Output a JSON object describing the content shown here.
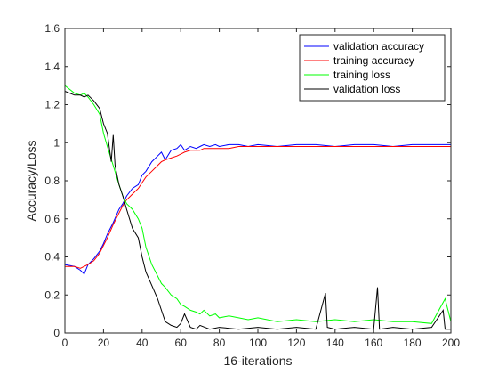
{
  "chart_data": {
    "type": "line",
    "title": "",
    "xlabel": "16-iterations",
    "ylabel": "Accuracy/Loss",
    "xlim": [
      0,
      200
    ],
    "ylim": [
      0,
      1.6
    ],
    "xticks": [
      "0",
      "20",
      "40",
      "60",
      "80",
      "100",
      "120",
      "140",
      "160",
      "180",
      "200"
    ],
    "yticks": [
      "0",
      "0.2",
      "0.4",
      "0.6",
      "0.8",
      "1",
      "1.2",
      "1.4",
      "1.6"
    ],
    "grid": false,
    "legend_position": "top-right",
    "series": [
      {
        "name": "validation accuracy",
        "color": "#0000ff",
        "x": [
          0,
          5,
          8,
          10,
          12,
          15,
          18,
          20,
          22,
          25,
          28,
          30,
          32,
          35,
          38,
          40,
          42,
          45,
          48,
          50,
          52,
          55,
          58,
          60,
          62,
          65,
          68,
          70,
          72,
          75,
          78,
          80,
          85,
          90,
          95,
          100,
          110,
          120,
          130,
          140,
          150,
          160,
          170,
          180,
          190,
          200
        ],
        "y": [
          0.36,
          0.35,
          0.33,
          0.31,
          0.36,
          0.39,
          0.43,
          0.47,
          0.52,
          0.58,
          0.65,
          0.68,
          0.72,
          0.76,
          0.78,
          0.83,
          0.85,
          0.9,
          0.93,
          0.95,
          0.91,
          0.96,
          0.97,
          0.99,
          0.96,
          0.98,
          0.97,
          0.98,
          0.99,
          0.98,
          0.99,
          0.98,
          0.99,
          0.99,
          0.98,
          0.99,
          0.98,
          0.99,
          0.99,
          0.98,
          0.99,
          0.99,
          0.98,
          0.99,
          0.99,
          0.99
        ]
      },
      {
        "name": "training accuracy",
        "color": "#ff0000",
        "x": [
          0,
          5,
          8,
          10,
          12,
          15,
          18,
          20,
          22,
          25,
          28,
          30,
          32,
          35,
          38,
          40,
          42,
          45,
          48,
          50,
          52,
          55,
          58,
          60,
          62,
          65,
          68,
          70,
          72,
          75,
          78,
          80,
          85,
          90,
          95,
          100,
          110,
          120,
          130,
          140,
          150,
          160,
          170,
          180,
          190,
          200
        ],
        "y": [
          0.35,
          0.35,
          0.34,
          0.35,
          0.36,
          0.38,
          0.42,
          0.46,
          0.5,
          0.57,
          0.63,
          0.67,
          0.7,
          0.73,
          0.76,
          0.79,
          0.82,
          0.85,
          0.88,
          0.9,
          0.91,
          0.92,
          0.93,
          0.94,
          0.95,
          0.96,
          0.96,
          0.96,
          0.97,
          0.97,
          0.97,
          0.97,
          0.97,
          0.98,
          0.98,
          0.98,
          0.98,
          0.98,
          0.98,
          0.98,
          0.98,
          0.98,
          0.98,
          0.98,
          0.98,
          0.98
        ]
      },
      {
        "name": "training loss",
        "color": "#00ff00",
        "x": [
          0,
          5,
          8,
          10,
          12,
          15,
          18,
          20,
          22,
          25,
          28,
          30,
          32,
          35,
          38,
          40,
          42,
          45,
          48,
          50,
          52,
          55,
          58,
          60,
          62,
          65,
          68,
          70,
          72,
          75,
          78,
          80,
          85,
          90,
          95,
          100,
          110,
          120,
          130,
          140,
          150,
          160,
          170,
          180,
          190,
          197,
          200
        ],
        "y": [
          1.3,
          1.26,
          1.25,
          1.26,
          1.24,
          1.2,
          1.15,
          1.05,
          0.98,
          0.88,
          0.78,
          0.72,
          0.68,
          0.65,
          0.6,
          0.55,
          0.45,
          0.36,
          0.3,
          0.26,
          0.24,
          0.2,
          0.18,
          0.15,
          0.14,
          0.12,
          0.11,
          0.1,
          0.12,
          0.09,
          0.1,
          0.08,
          0.09,
          0.08,
          0.07,
          0.08,
          0.06,
          0.07,
          0.06,
          0.07,
          0.06,
          0.07,
          0.06,
          0.06,
          0.05,
          0.18,
          0.06
        ]
      },
      {
        "name": "validation loss",
        "color": "#000000",
        "x": [
          0,
          5,
          8,
          10,
          12,
          15,
          18,
          20,
          22,
          24,
          25,
          26,
          28,
          30,
          32,
          35,
          38,
          40,
          42,
          45,
          48,
          50,
          52,
          55,
          58,
          60,
          62,
          65,
          68,
          70,
          75,
          80,
          90,
          100,
          110,
          120,
          130,
          135,
          136,
          140,
          150,
          160,
          162,
          163,
          170,
          180,
          190,
          196,
          197,
          200
        ],
        "y": [
          1.27,
          1.25,
          1.25,
          1.24,
          1.25,
          1.22,
          1.18,
          1.1,
          1.05,
          0.9,
          1.04,
          0.88,
          0.78,
          0.72,
          0.65,
          0.55,
          0.5,
          0.4,
          0.32,
          0.25,
          0.18,
          0.12,
          0.06,
          0.04,
          0.03,
          0.05,
          0.1,
          0.03,
          0.02,
          0.04,
          0.02,
          0.03,
          0.02,
          0.03,
          0.02,
          0.03,
          0.02,
          0.21,
          0.03,
          0.02,
          0.03,
          0.02,
          0.24,
          0.02,
          0.03,
          0.02,
          0.03,
          0.12,
          0.02,
          0.02
        ]
      }
    ]
  }
}
